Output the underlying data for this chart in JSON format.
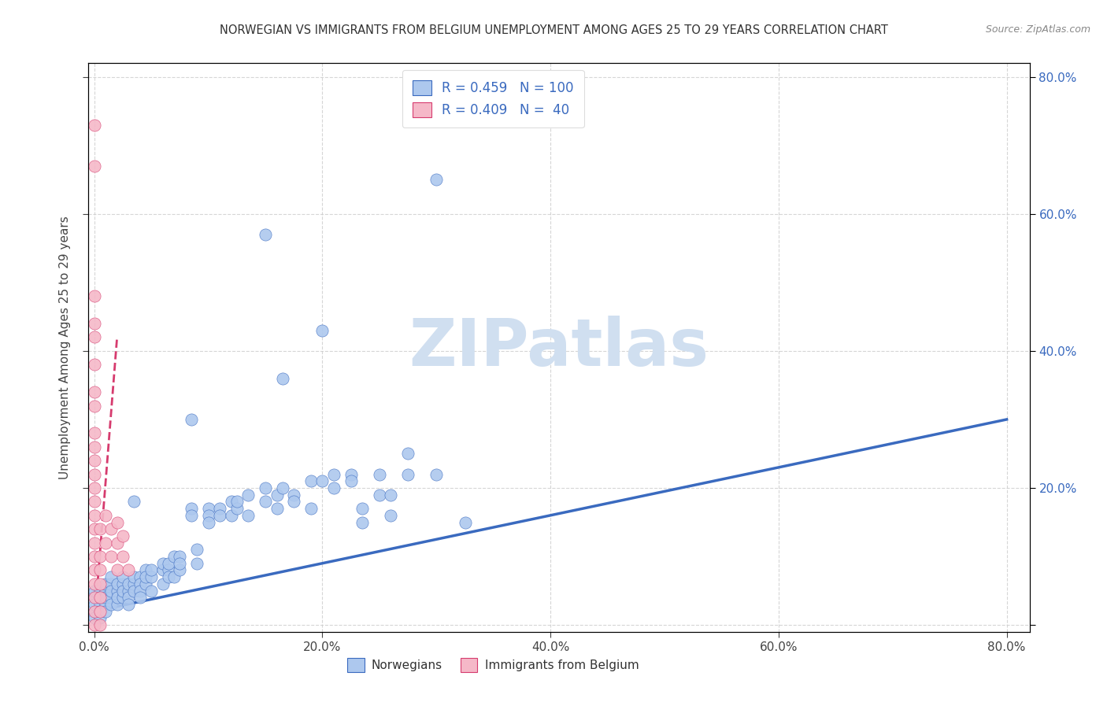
{
  "title": "NORWEGIAN VS IMMIGRANTS FROM BELGIUM UNEMPLOYMENT AMONG AGES 25 TO 29 YEARS CORRELATION CHART",
  "source": "Source: ZipAtlas.com",
  "ylabel": "Unemployment Among Ages 25 to 29 years",
  "xlim": [
    -0.005,
    0.82
  ],
  "ylim": [
    -0.01,
    0.82
  ],
  "xtick_vals": [
    0.0,
    0.2,
    0.4,
    0.6,
    0.8
  ],
  "xtick_labels": [
    "0.0%",
    "",
    "",
    "",
    "80.0%"
  ],
  "ytick_vals": [
    0.0,
    0.2,
    0.4,
    0.6,
    0.8
  ],
  "ytick_labels_right": [
    "",
    "20.0%",
    "40.0%",
    "60.0%",
    "80.0%"
  ],
  "legend_R_norwegian": "0.459",
  "legend_N_norwegian": "100",
  "legend_R_belgium": "0.409",
  "legend_N_belgium": " 40",
  "norwegian_color": "#adc8ee",
  "norway_line_color": "#3a6abf",
  "belgium_color": "#f5b8c8",
  "belgium_line_color": "#d63b6e",
  "watermark": "ZIPatlas",
  "watermark_color": "#d0dff0",
  "background_color": "#ffffff",
  "norwegian_points": [
    [
      0.0,
      0.04
    ],
    [
      0.0,
      0.02
    ],
    [
      0.0,
      0.03
    ],
    [
      0.0,
      0.05
    ],
    [
      0.0,
      0.01
    ],
    [
      0.005,
      0.05
    ],
    [
      0.005,
      0.03
    ],
    [
      0.005,
      0.04
    ],
    [
      0.005,
      0.02
    ],
    [
      0.005,
      0.01
    ],
    [
      0.01,
      0.05
    ],
    [
      0.01,
      0.03
    ],
    [
      0.01,
      0.04
    ],
    [
      0.01,
      0.06
    ],
    [
      0.01,
      0.02
    ],
    [
      0.015,
      0.06
    ],
    [
      0.015,
      0.04
    ],
    [
      0.015,
      0.05
    ],
    [
      0.015,
      0.03
    ],
    [
      0.015,
      0.07
    ],
    [
      0.02,
      0.05
    ],
    [
      0.02,
      0.03
    ],
    [
      0.02,
      0.04
    ],
    [
      0.02,
      0.06
    ],
    [
      0.025,
      0.04
    ],
    [
      0.025,
      0.06
    ],
    [
      0.025,
      0.05
    ],
    [
      0.025,
      0.07
    ],
    [
      0.03,
      0.05
    ],
    [
      0.03,
      0.06
    ],
    [
      0.03,
      0.04
    ],
    [
      0.03,
      0.03
    ],
    [
      0.035,
      0.18
    ],
    [
      0.035,
      0.06
    ],
    [
      0.035,
      0.05
    ],
    [
      0.035,
      0.07
    ],
    [
      0.04,
      0.07
    ],
    [
      0.04,
      0.06
    ],
    [
      0.04,
      0.05
    ],
    [
      0.04,
      0.04
    ],
    [
      0.045,
      0.08
    ],
    [
      0.045,
      0.06
    ],
    [
      0.045,
      0.07
    ],
    [
      0.05,
      0.07
    ],
    [
      0.05,
      0.05
    ],
    [
      0.05,
      0.08
    ],
    [
      0.06,
      0.08
    ],
    [
      0.06,
      0.09
    ],
    [
      0.06,
      0.06
    ],
    [
      0.065,
      0.08
    ],
    [
      0.065,
      0.07
    ],
    [
      0.065,
      0.09
    ],
    [
      0.07,
      0.1
    ],
    [
      0.07,
      0.07
    ],
    [
      0.075,
      0.1
    ],
    [
      0.075,
      0.08
    ],
    [
      0.075,
      0.09
    ],
    [
      0.085,
      0.3
    ],
    [
      0.085,
      0.17
    ],
    [
      0.085,
      0.16
    ],
    [
      0.09,
      0.11
    ],
    [
      0.09,
      0.09
    ],
    [
      0.1,
      0.17
    ],
    [
      0.1,
      0.16
    ],
    [
      0.1,
      0.15
    ],
    [
      0.11,
      0.17
    ],
    [
      0.11,
      0.16
    ],
    [
      0.12,
      0.18
    ],
    [
      0.12,
      0.16
    ],
    [
      0.125,
      0.17
    ],
    [
      0.125,
      0.18
    ],
    [
      0.135,
      0.19
    ],
    [
      0.135,
      0.16
    ],
    [
      0.15,
      0.57
    ],
    [
      0.15,
      0.2
    ],
    [
      0.15,
      0.18
    ],
    [
      0.16,
      0.19
    ],
    [
      0.16,
      0.17
    ],
    [
      0.165,
      0.36
    ],
    [
      0.165,
      0.2
    ],
    [
      0.175,
      0.19
    ],
    [
      0.175,
      0.18
    ],
    [
      0.19,
      0.21
    ],
    [
      0.19,
      0.17
    ],
    [
      0.2,
      0.43
    ],
    [
      0.2,
      0.21
    ],
    [
      0.21,
      0.22
    ],
    [
      0.21,
      0.2
    ],
    [
      0.225,
      0.22
    ],
    [
      0.225,
      0.21
    ],
    [
      0.235,
      0.17
    ],
    [
      0.235,
      0.15
    ],
    [
      0.25,
      0.22
    ],
    [
      0.25,
      0.19
    ],
    [
      0.26,
      0.19
    ],
    [
      0.26,
      0.16
    ],
    [
      0.275,
      0.25
    ],
    [
      0.275,
      0.22
    ],
    [
      0.3,
      0.65
    ],
    [
      0.3,
      0.22
    ],
    [
      0.325,
      0.15
    ]
  ],
  "belgium_points": [
    [
      0.0,
      0.73
    ],
    [
      0.0,
      0.67
    ],
    [
      0.0,
      0.48
    ],
    [
      0.0,
      0.44
    ],
    [
      0.0,
      0.42
    ],
    [
      0.0,
      0.38
    ],
    [
      0.0,
      0.34
    ],
    [
      0.0,
      0.32
    ],
    [
      0.0,
      0.28
    ],
    [
      0.0,
      0.26
    ],
    [
      0.0,
      0.24
    ],
    [
      0.0,
      0.22
    ],
    [
      0.0,
      0.2
    ],
    [
      0.0,
      0.18
    ],
    [
      0.0,
      0.16
    ],
    [
      0.0,
      0.14
    ],
    [
      0.0,
      0.12
    ],
    [
      0.0,
      0.1
    ],
    [
      0.0,
      0.08
    ],
    [
      0.0,
      0.06
    ],
    [
      0.0,
      0.04
    ],
    [
      0.0,
      0.02
    ],
    [
      0.0,
      0.0
    ],
    [
      0.005,
      0.14
    ],
    [
      0.005,
      0.1
    ],
    [
      0.005,
      0.08
    ],
    [
      0.005,
      0.06
    ],
    [
      0.005,
      0.04
    ],
    [
      0.005,
      0.02
    ],
    [
      0.005,
      0.0
    ],
    [
      0.01,
      0.16
    ],
    [
      0.01,
      0.12
    ],
    [
      0.015,
      0.14
    ],
    [
      0.015,
      0.1
    ],
    [
      0.02,
      0.12
    ],
    [
      0.02,
      0.15
    ],
    [
      0.02,
      0.08
    ],
    [
      0.025,
      0.1
    ],
    [
      0.025,
      0.13
    ],
    [
      0.03,
      0.08
    ]
  ],
  "norway_trendline": [
    [
      0.0,
      0.02
    ],
    [
      0.8,
      0.3
    ]
  ],
  "belgium_trendline": [
    [
      0.0,
      0.0
    ],
    [
      0.02,
      0.42
    ]
  ]
}
